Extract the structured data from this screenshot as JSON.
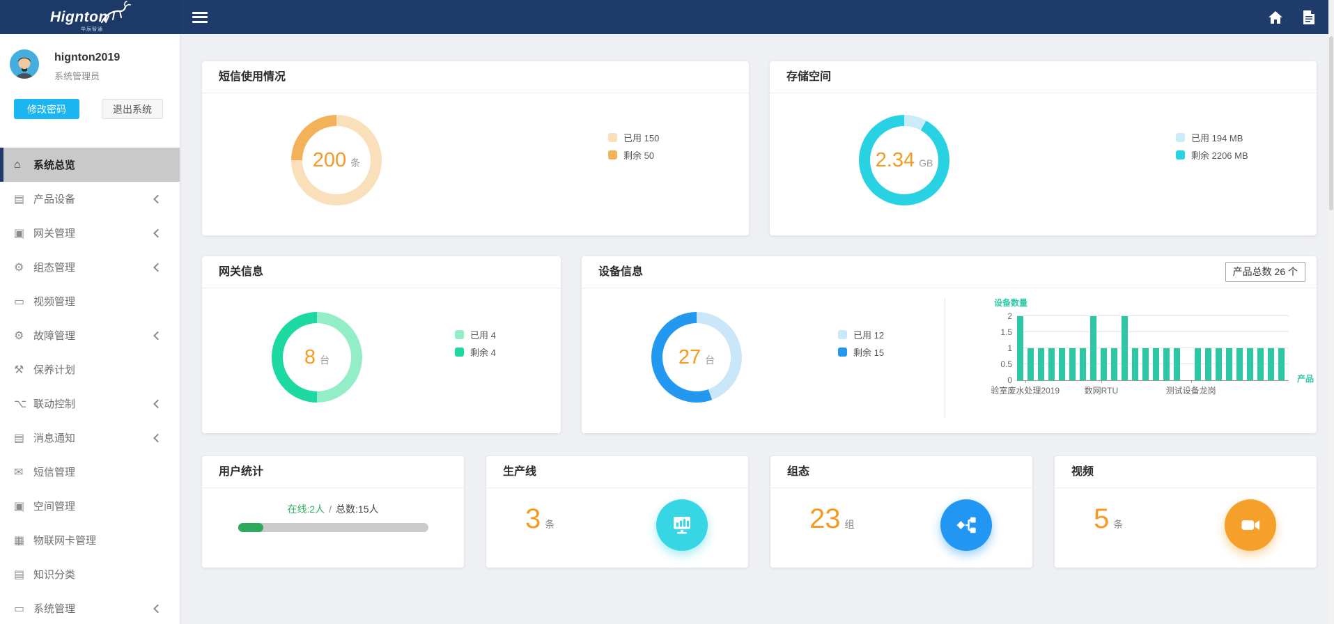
{
  "header": {
    "logo_text": "Hignton",
    "logo_subtext": "华辰智通"
  },
  "sidebar": {
    "user": {
      "name": "hignton2019",
      "role": "系统管理员",
      "change_password": "修改密码",
      "logout": "退出系统"
    },
    "menu": [
      {
        "label": "系统总览",
        "icon": "home",
        "active": true,
        "chevron": false
      },
      {
        "label": "产品设备",
        "icon": "book",
        "active": false,
        "chevron": true
      },
      {
        "label": "网关管理",
        "icon": "card",
        "active": false,
        "chevron": true
      },
      {
        "label": "组态管理",
        "icon": "gears",
        "active": false,
        "chevron": true
      },
      {
        "label": "视频管理",
        "icon": "monitor",
        "active": false,
        "chevron": false
      },
      {
        "label": "故障管理",
        "icon": "gears",
        "active": false,
        "chevron": true
      },
      {
        "label": "保养计划",
        "icon": "wrench",
        "active": false,
        "chevron": false
      },
      {
        "label": "联动控制",
        "icon": "sitemap",
        "active": false,
        "chevron": true
      },
      {
        "label": "消息通知",
        "icon": "book",
        "active": false,
        "chevron": true
      },
      {
        "label": "短信管理",
        "icon": "mail",
        "active": false,
        "chevron": false
      },
      {
        "label": "空间管理",
        "icon": "card",
        "active": false,
        "chevron": false
      },
      {
        "label": "物联网卡管理",
        "icon": "sdcard",
        "active": false,
        "chevron": false
      },
      {
        "label": "知识分类",
        "icon": "book",
        "active": false,
        "chevron": false
      },
      {
        "label": "系统管理",
        "icon": "monitor",
        "active": false,
        "chevron": true
      }
    ]
  },
  "cards": {
    "sms": {
      "title": "短信使用情况"
    },
    "storage": {
      "title": "存储空间"
    },
    "gateway": {
      "title": "网关信息"
    },
    "device": {
      "title": "设备信息",
      "product_total": "产品总数 26 个"
    },
    "users": {
      "title": "用户统计"
    },
    "production": {
      "title": "生产线",
      "value": "3",
      "unit": "条"
    },
    "configuration": {
      "title": "组态",
      "value": "23",
      "unit": "组"
    },
    "video": {
      "title": "视频",
      "value": "5",
      "unit": "条"
    }
  },
  "chart_data": [
    {
      "id": "sms-donut",
      "type": "donut",
      "title": "短信使用情况",
      "center_value": "200",
      "center_unit": "条",
      "segments": [
        {
          "name": "已用",
          "value": 150,
          "display": "已用 150",
          "color": "#F9DFBA"
        },
        {
          "name": "剩余",
          "value": 50,
          "display": "剩余 50",
          "color": "#F3B159"
        }
      ]
    },
    {
      "id": "storage-donut",
      "type": "donut",
      "title": "存储空间",
      "center_value": "2.34",
      "center_unit": "GB",
      "segments": [
        {
          "name": "已用",
          "value": 194,
          "display": "已用 194 MB",
          "color": "#C9ECF8"
        },
        {
          "name": "剩余",
          "value": 2206,
          "display": "剩余 2206 MB",
          "color": "#29D2E2"
        }
      ]
    },
    {
      "id": "gateway-donut",
      "type": "donut",
      "title": "网关信息",
      "center_value": "8",
      "center_unit": "台",
      "segments": [
        {
          "name": "已用",
          "value": 4,
          "display": "已用 4",
          "color": "#93EEC7"
        },
        {
          "name": "剩余",
          "value": 4,
          "display": "剩余 4",
          "color": "#1CD8A1"
        }
      ]
    },
    {
      "id": "device-donut",
      "type": "donut",
      "title": "设备信息",
      "center_value": "27",
      "center_unit": "台",
      "segments": [
        {
          "name": "已用",
          "value": 12,
          "display": "已用 12",
          "color": "#CAE7FA"
        },
        {
          "name": "剩余",
          "value": 15,
          "display": "剩余 15",
          "color": "#2298F0"
        }
      ]
    },
    {
      "id": "device-bar",
      "type": "bar",
      "ylabel": "设备数量",
      "xlabel": "产品",
      "ylim": [
        0,
        2
      ],
      "yticks": [
        0,
        0.5,
        1,
        1.5,
        2
      ],
      "values": [
        2,
        1,
        1,
        1,
        1,
        1,
        1,
        2,
        1,
        1,
        2,
        1,
        1,
        1,
        1,
        1,
        0,
        1,
        1,
        1,
        1,
        1,
        1,
        1,
        1,
        1
      ],
      "xticks": [
        {
          "label": "验室废水处理2019",
          "pos_pct": 3
        },
        {
          "label": "数网RTU",
          "pos_pct": 31
        },
        {
          "label": "测试设备龙岗",
          "pos_pct": 64
        }
      ],
      "bar_color": "#2EC7A6",
      "grid": true
    },
    {
      "id": "user-progress",
      "type": "progress",
      "title": "用户统计",
      "online": 2,
      "total": 15,
      "online_label": "在线:2人",
      "separator": "/",
      "total_label": "总数:15人",
      "fill_color": "#2EA75F",
      "track_color": "#CBCBCB"
    }
  ],
  "colors": {
    "header_bg": "#1F3B6C",
    "accent_orange": "#F59A23",
    "production_circle": "#36D6E4",
    "configuration_circle": "#2196F3",
    "video_circle": "#F5A02B"
  }
}
